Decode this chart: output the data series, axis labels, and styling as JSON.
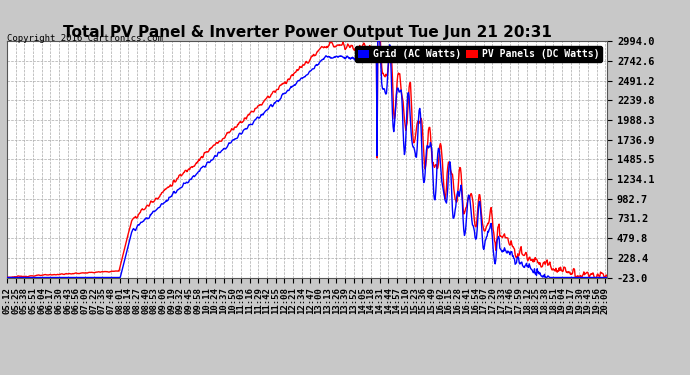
{
  "title": "Total PV Panel & Inverter Power Output Tue Jun 21 20:31",
  "copyright": "Copyright 2016 Cartronics.com",
  "legend_labels": [
    "Grid (AC Watts)",
    "PV Panels (DC Watts)"
  ],
  "legend_colors": [
    "#0000ff",
    "#ff0000"
  ],
  "grid_color": "#aaaaaa",
  "bg_color": "#c8c8c8",
  "plot_bg_color": "#ffffff",
  "ymin": -23.0,
  "ymax": 2994.0,
  "yticks": [
    -23.0,
    228.4,
    479.8,
    731.2,
    982.7,
    1234.1,
    1485.5,
    1736.9,
    1988.3,
    2239.8,
    2491.2,
    2742.6,
    2994.0
  ],
  "ytick_labels": [
    "-23.0",
    "228.4",
    "479.8",
    "731.2",
    "982.7",
    "1234.1",
    "1485.5",
    "1736.9",
    "1988.3",
    "2239.8",
    "2491.2",
    "2742.6",
    "2994.0"
  ],
  "line_width": 1.0,
  "title_fontsize": 11,
  "tick_fontsize": 7.5,
  "xlabel_fontsize": 6.5
}
